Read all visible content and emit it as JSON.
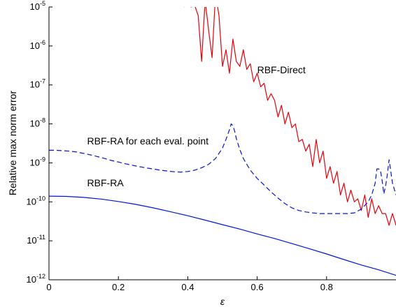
{
  "chart_data": {
    "type": "line",
    "title": "",
    "xlabel": "ε",
    "ylabel": "Relative max norm error",
    "xlim": [
      0,
      1
    ],
    "ylim": [
      1e-12,
      1e-05
    ],
    "yscale": "log",
    "grid": false,
    "colors": {
      "red": "#e8000b",
      "blue": "#0015d6"
    },
    "x_ticks": [
      0,
      0.2,
      0.4,
      0.6,
      0.8
    ],
    "x_tick_labels": [
      "0",
      "0.2",
      "0.4",
      "0.6",
      "0.8"
    ],
    "y_ticks": [
      {
        "exp": -12,
        "base": "10",
        "sup": "-12"
      },
      {
        "exp": -11,
        "base": "10",
        "sup": "-11"
      },
      {
        "exp": -10,
        "base": "10",
        "sup": "-10"
      },
      {
        "exp": -9,
        "base": "10",
        "sup": "-9"
      },
      {
        "exp": -8,
        "base": "10",
        "sup": "-8"
      },
      {
        "exp": -7,
        "base": "10",
        "sup": "-7"
      },
      {
        "exp": -6,
        "base": "10",
        "sup": "-6"
      },
      {
        "exp": -5,
        "base": "10",
        "sup": "-5"
      }
    ],
    "annotations": [
      {
        "text": "RBF-Direct",
        "x": 0.6,
        "y": 2e-07
      },
      {
        "text": "RBF-RA for each eval. point",
        "x": 0.11,
        "y": 3e-09
      },
      {
        "text": "RBF-RA",
        "x": 0.11,
        "y": 2.5e-10
      }
    ],
    "series": [
      {
        "color": "red",
        "dash": "solid",
        "x": [
          0.39,
          0.4,
          0.41,
          0.42,
          0.43,
          0.44,
          0.45,
          0.46,
          0.47,
          0.48,
          0.49,
          0.5,
          0.51,
          0.52,
          0.53,
          0.54,
          0.55,
          0.56,
          0.57,
          0.58,
          0.59,
          0.6,
          0.61,
          0.62,
          0.63,
          0.64,
          0.65,
          0.66,
          0.67,
          0.68,
          0.69,
          0.7,
          0.71,
          0.72,
          0.73,
          0.74,
          0.75,
          0.76,
          0.77,
          0.78,
          0.79,
          0.8,
          0.81,
          0.82,
          0.83,
          0.84,
          0.85,
          0.86,
          0.87,
          0.88,
          0.89,
          0.9,
          0.91,
          0.92,
          0.93,
          0.94,
          0.95,
          0.96,
          0.97,
          0.98,
          0.99,
          1.0
        ],
        "y": [
          1e-05,
          1.2e-05,
          1e-05,
          1.1e-05,
          6e-06,
          4e-07,
          1.5e-05,
          2.5e-06,
          5e-07,
          2.2e-05,
          6e-06,
          3e-07,
          8e-07,
          2e-07,
          1.5e-06,
          4e-07,
          3e-07,
          8e-07,
          2.5e-07,
          3.5e-07,
          1.2e-07,
          2e-07,
          9e-08,
          1.1e-07,
          4e-08,
          6e-08,
          4e-08,
          1.5e-08,
          3e-08,
          1e-08,
          2e-08,
          8e-09,
          1e-08,
          3.5e-09,
          4e-09,
          2e-09,
          3e-09,
          8e-10,
          4e-09,
          1e-09,
          2e-09,
          4e-10,
          8e-10,
          3e-10,
          6e-10,
          1.5e-10,
          3e-10,
          1e-10,
          2e-10,
          1e-10,
          1.2e-10,
          6e-11,
          1.5e-10,
          4e-11,
          1.2e-10,
          5e-11,
          8e-11,
          5e-11,
          5e-11,
          2.5e-11,
          5e-11,
          2.5e-11
        ]
      },
      {
        "color": "blue",
        "dash": "dashed",
        "x": [
          0,
          0.02,
          0.04,
          0.06,
          0.08,
          0.1,
          0.12,
          0.14,
          0.16,
          0.18,
          0.2,
          0.22,
          0.24,
          0.26,
          0.28,
          0.3,
          0.32,
          0.34,
          0.36,
          0.38,
          0.4,
          0.42,
          0.44,
          0.46,
          0.48,
          0.5,
          0.51,
          0.52,
          0.525,
          0.53,
          0.535,
          0.54,
          0.55,
          0.56,
          0.58,
          0.6,
          0.62,
          0.64,
          0.66,
          0.68,
          0.7,
          0.72,
          0.74,
          0.76,
          0.78,
          0.8,
          0.82,
          0.84,
          0.86,
          0.88,
          0.9,
          0.92,
          0.93,
          0.94,
          0.945,
          0.95,
          0.955,
          0.96,
          0.965,
          0.97,
          0.975,
          0.98,
          0.985,
          0.99,
          1.0
        ],
        "y": [
          2.1e-09,
          2.1e-09,
          2.05e-09,
          2e-09,
          1.9e-09,
          1.75e-09,
          1.6e-09,
          1.45e-09,
          1.3e-09,
          1.15e-09,
          1.05e-09,
          9.5e-10,
          8.7e-10,
          8e-10,
          7.4e-10,
          7e-10,
          6.5e-10,
          6.2e-10,
          5.9e-10,
          5.8e-10,
          6e-10,
          6.5e-10,
          7.5e-10,
          9.2e-10,
          1.3e-09,
          2.4e-09,
          4e-09,
          7e-09,
          1e-08,
          9e-09,
          6.5e-09,
          4.2e-09,
          2.2e-09,
          1.3e-09,
          6.5e-10,
          4e-10,
          2.7e-10,
          1.8e-10,
          1.25e-10,
          9e-11,
          7e-11,
          6e-11,
          5.5e-11,
          5.2e-11,
          5e-11,
          5e-11,
          5e-11,
          5e-11,
          5e-11,
          5.2e-11,
          6.5e-11,
          1e-10,
          1.5e-10,
          3e-10,
          7e-10,
          7e-10,
          6.5e-10,
          3.5e-10,
          1.6e-10,
          2.5e-10,
          5e-10,
          1.2e-09,
          6e-10,
          3e-10,
          1.5e-10
        ]
      },
      {
        "color": "blue",
        "dash": "solid",
        "x": [
          0,
          0.05,
          0.1,
          0.15,
          0.2,
          0.25,
          0.3,
          0.35,
          0.4,
          0.45,
          0.5,
          0.55,
          0.6,
          0.65,
          0.7,
          0.75,
          0.8,
          0.85,
          0.9,
          0.95,
          1.0
        ],
        "y": [
          1.4e-10,
          1.38e-10,
          1.3e-10,
          1.18e-10,
          1.02e-10,
          8.6e-11,
          7e-11,
          5.6e-11,
          4.4e-11,
          3.4e-11,
          2.6e-11,
          2e-11,
          1.5e-11,
          1.15e-11,
          8.5e-12,
          6.3e-12,
          4.6e-12,
          3.3e-12,
          2.4e-12,
          1.8e-12,
          1.3e-12
        ]
      }
    ]
  }
}
